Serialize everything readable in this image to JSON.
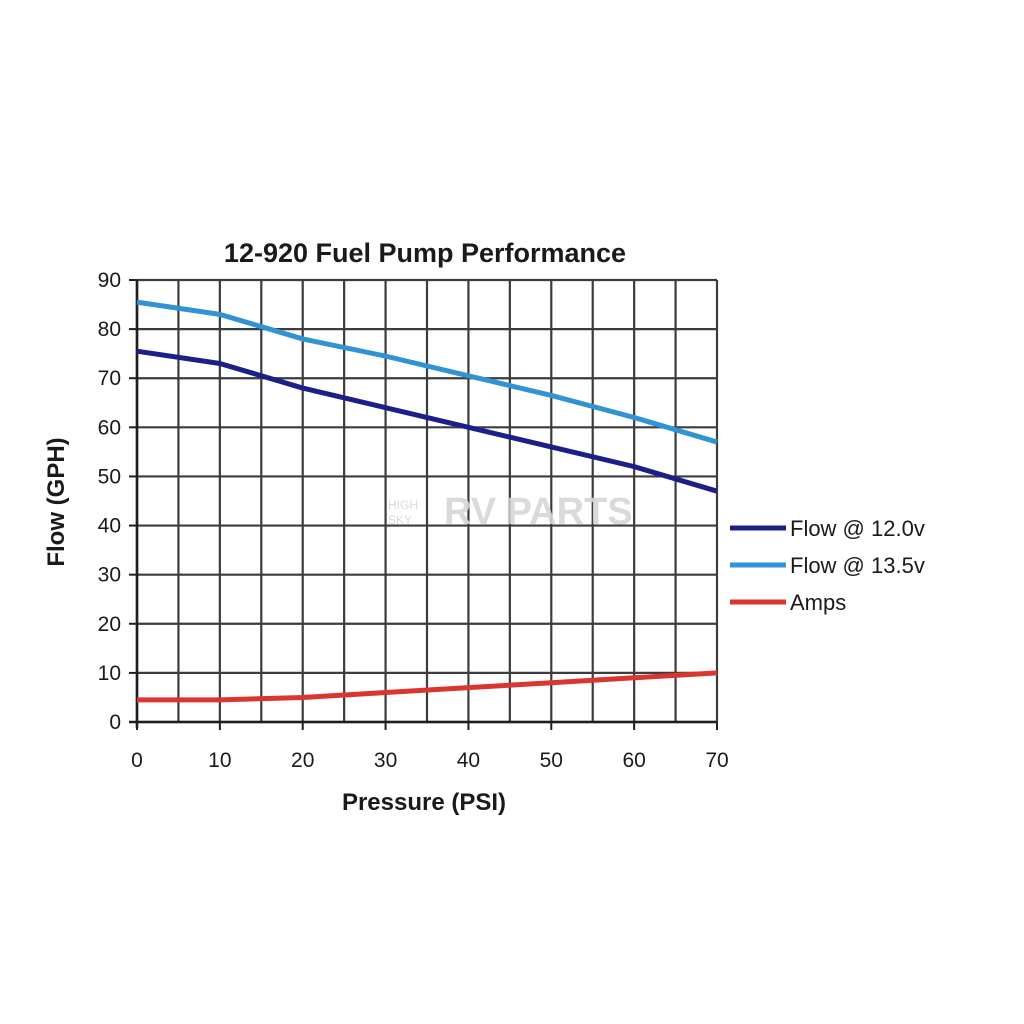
{
  "chart_data": {
    "type": "line",
    "title": "12-920 Fuel Pump Performance",
    "xlabel": "Pressure (PSI)",
    "ylabel": "Flow (GPH)",
    "xlim": [
      0,
      70
    ],
    "ylim": [
      0,
      90
    ],
    "x_ticks": [
      0,
      10,
      20,
      30,
      40,
      50,
      60,
      70
    ],
    "y_ticks": [
      0,
      10,
      20,
      30,
      40,
      50,
      60,
      70,
      80,
      90
    ],
    "grid": true,
    "legend_position": "right",
    "series": [
      {
        "name": "Flow @ 12.0v",
        "color": "#1c1f8a",
        "x": [
          0,
          10,
          20,
          30,
          40,
          50,
          60,
          70
        ],
        "y": [
          75.5,
          73,
          68,
          64,
          60,
          56,
          52,
          47
        ]
      },
      {
        "name": "Flow @ 13.5v",
        "color": "#2f93d4",
        "x": [
          0,
          10,
          20,
          30,
          40,
          50,
          60,
          70
        ],
        "y": [
          85.5,
          83,
          78,
          74.5,
          70.5,
          66.5,
          62,
          57
        ]
      },
      {
        "name": "Amps",
        "color": "#d8362e",
        "x": [
          0,
          10,
          20,
          30,
          40,
          50,
          60,
          70
        ],
        "y": [
          4.5,
          4.5,
          5,
          6,
          7,
          8,
          9,
          10
        ]
      }
    ]
  },
  "watermark": {
    "line1": "HIGH",
    "line2": "SKY",
    "brand": "RV PARTS"
  }
}
